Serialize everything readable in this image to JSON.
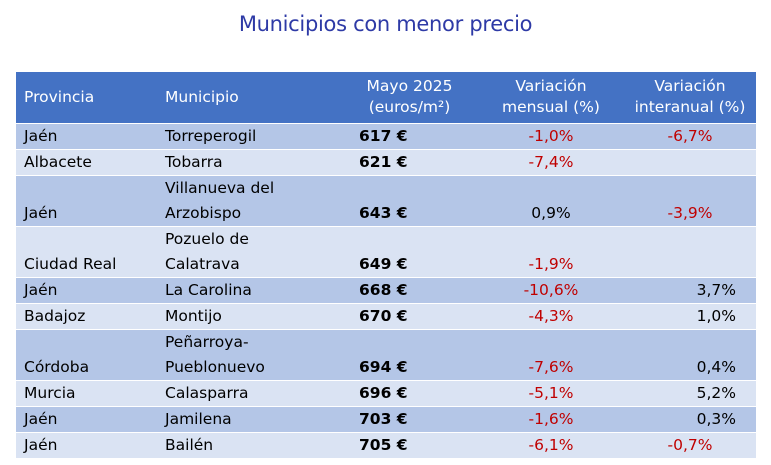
{
  "title": "Municipios con menor precio",
  "colors": {
    "title": "#2e3aa6",
    "header_bg": "#4472c4",
    "row_dark": "#b4c6e7",
    "row_light": "#dae3f3",
    "negative": "#c00000"
  },
  "table": {
    "headers": {
      "provincia": "Provincia",
      "municipio": "Municipio",
      "precio_l1": "Mayo 2025",
      "precio_l2": "(euros/m²)",
      "mensual_l1": "Variación",
      "mensual_l2": "mensual (%)",
      "interanual_l1": "Variación",
      "interanual_l2": "interanual (%)"
    },
    "rows": [
      {
        "provincia": "Jaén",
        "municipio_l1": "Torreperogil",
        "municipio_l2": "",
        "precio": "617 €",
        "mensual": "-1,0%",
        "interanual": "-6,7%"
      },
      {
        "provincia": "Albacete",
        "municipio_l1": "Tobarra",
        "municipio_l2": "",
        "precio": "621 €",
        "mensual": "-7,4%",
        "interanual": ""
      },
      {
        "provincia": "Jaén",
        "municipio_l1": "Villanueva del",
        "municipio_l2": "Arzobispo",
        "precio": "643 €",
        "mensual": "0,9%",
        "interanual": "-3,9%"
      },
      {
        "provincia": "Ciudad Real",
        "municipio_l1": "Pozuelo de",
        "municipio_l2": "Calatrava",
        "precio": "649 €",
        "mensual": "-1,9%",
        "interanual": ""
      },
      {
        "provincia": "Jaén",
        "municipio_l1": "La Carolina",
        "municipio_l2": "",
        "precio": "668 €",
        "mensual": "-10,6%",
        "interanual": "3,7%"
      },
      {
        "provincia": "Badajoz",
        "municipio_l1": "Montijo",
        "municipio_l2": "",
        "precio": "670 €",
        "mensual": "-4,3%",
        "interanual": "1,0%"
      },
      {
        "provincia": "Córdoba",
        "municipio_l1": "Peñarroya-",
        "municipio_l2": "Pueblonuevo",
        "precio": "694 €",
        "mensual": "-7,6%",
        "interanual": "0,4%"
      },
      {
        "provincia": "Murcia",
        "municipio_l1": "Calasparra",
        "municipio_l2": "",
        "precio": "696 €",
        "mensual": "-5,1%",
        "interanual": "5,2%"
      },
      {
        "provincia": "Jaén",
        "municipio_l1": "Jamilena",
        "municipio_l2": "",
        "precio": "703 €",
        "mensual": "-1,6%",
        "interanual": "0,3%"
      },
      {
        "provincia": "Jaén",
        "municipio_l1": "Bailén",
        "municipio_l2": "",
        "precio": "705 €",
        "mensual": "-6,1%",
        "interanual": "-0,7%"
      }
    ]
  }
}
